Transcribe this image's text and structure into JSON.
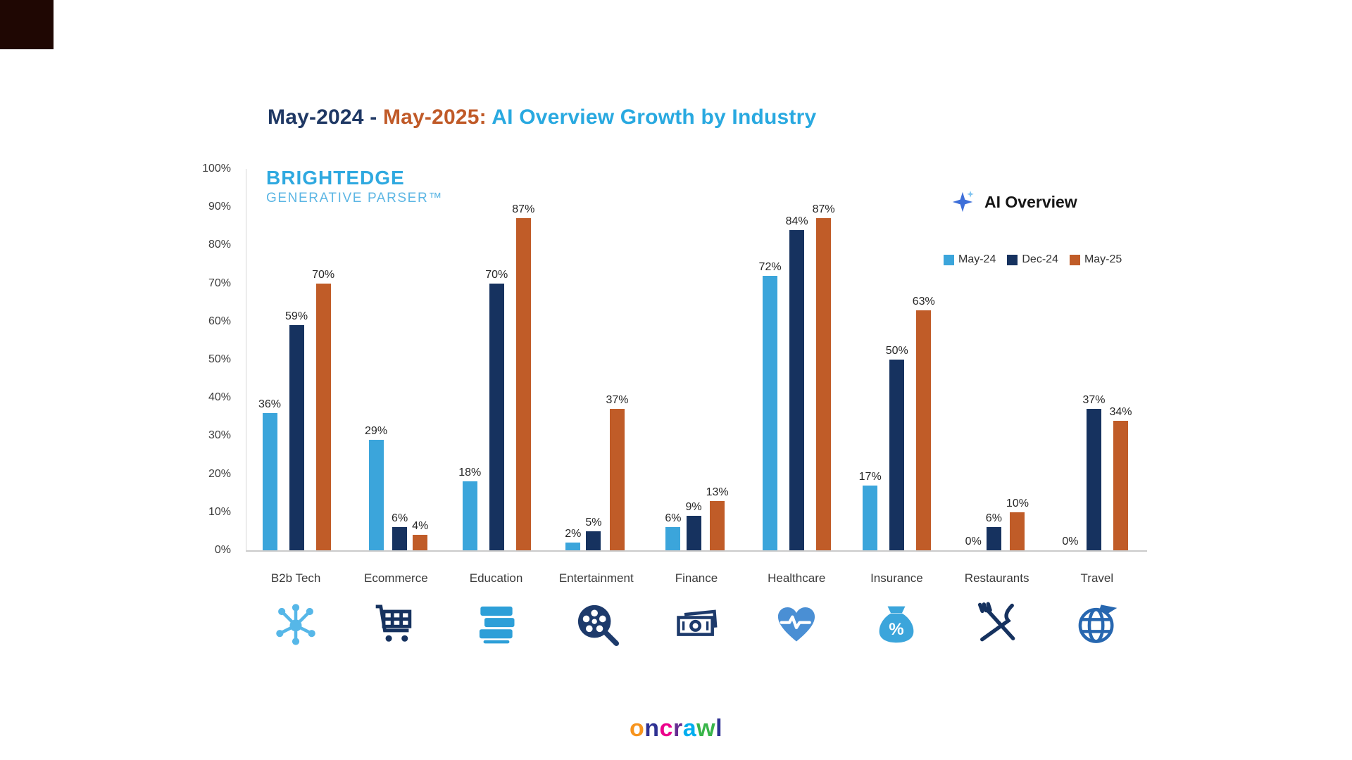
{
  "title": {
    "range_start": "May-2024",
    "separator": " - ",
    "range_end": "May-2025:",
    "suffix": " AI Overview Growth by Industry"
  },
  "colors": {
    "title_navy": "#1F3864",
    "title_orange": "#C05A28",
    "title_cyan": "#29A9E0",
    "axis_text": "#3c3c3c"
  },
  "brand": {
    "line1": "BRIGHTEDGE",
    "line2": "GENERATIVE PARSER™"
  },
  "legend": {
    "title": "AI Overview",
    "items": [
      {
        "label": "May-24",
        "color": "#3BA5DB"
      },
      {
        "label": "Dec-24",
        "color": "#16325F"
      },
      {
        "label": "May-25",
        "color": "#C05C28"
      }
    ]
  },
  "chart_data": {
    "type": "bar",
    "title": "May-2024 - May-2025: AI Overview Growth by Industry",
    "categories": [
      "B2b Tech",
      "Ecommerce",
      "Education",
      "Entertainment",
      "Finance",
      "Healthcare",
      "Insurance",
      "Restaurants",
      "Travel"
    ],
    "series": [
      {
        "name": "May-24",
        "color": "#3BA5DB",
        "values": [
          36,
          29,
          18,
          2,
          6,
          72,
          17,
          0,
          0
        ]
      },
      {
        "name": "Dec-24",
        "color": "#16325F",
        "values": [
          59,
          6,
          70,
          5,
          9,
          84,
          50,
          6,
          37
        ]
      },
      {
        "name": "May-25",
        "color": "#C05C28",
        "values": [
          70,
          4,
          87,
          37,
          13,
          87,
          63,
          10,
          34
        ]
      }
    ],
    "xlabel": "",
    "ylabel": "",
    "ylim": [
      0,
      100
    ],
    "yticks": [
      "0%",
      "10%",
      "20%",
      "30%",
      "40%",
      "50%",
      "60%",
      "70%",
      "80%",
      "90%",
      "100%"
    ],
    "value_suffix": "%",
    "grid": false,
    "legend_position": "right"
  },
  "category_icons": [
    {
      "icon": "network-icon",
      "color": "#56B7E8"
    },
    {
      "icon": "cart-icon",
      "color": "#16325F"
    },
    {
      "icon": "books-icon",
      "color": "#2D9FD8"
    },
    {
      "icon": "film-icon",
      "color": "#1D3A6B"
    },
    {
      "icon": "money-icon",
      "color": "#1D3A6B"
    },
    {
      "icon": "heart-icon",
      "color": "#4A8FD4"
    },
    {
      "icon": "moneybag-icon",
      "color": "#3BA5DB"
    },
    {
      "icon": "cutlery-icon",
      "color": "#16325F"
    },
    {
      "icon": "globe-icon",
      "color": "#2767B0"
    }
  ],
  "footer": {
    "letters": [
      {
        "ch": "o",
        "color": "#F7941D"
      },
      {
        "ch": "n",
        "color": "#2E3192"
      },
      {
        "ch": "c",
        "color": "#EC008C"
      },
      {
        "ch": "r",
        "color": "#662D91"
      },
      {
        "ch": "a",
        "color": "#00AEEF"
      },
      {
        "ch": "w",
        "color": "#39B54A"
      },
      {
        "ch": "l",
        "color": "#2E3192"
      }
    ]
  }
}
